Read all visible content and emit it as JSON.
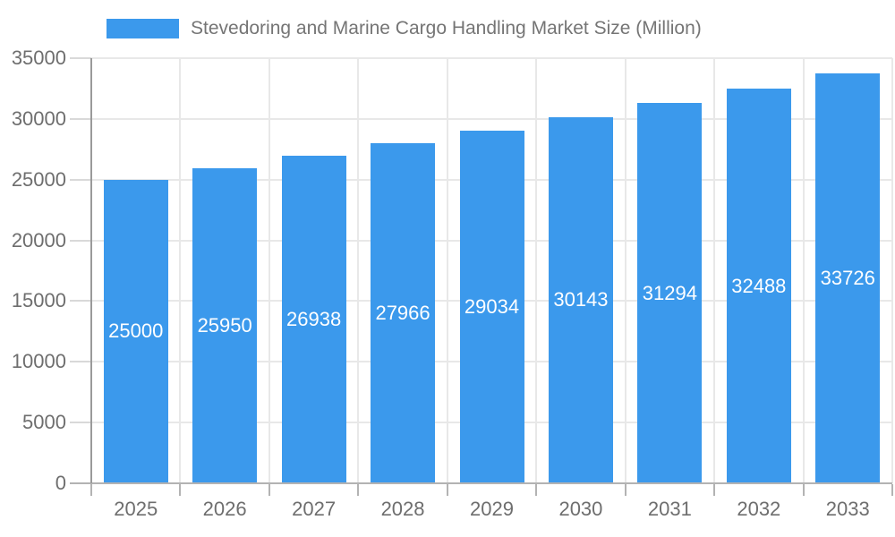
{
  "chart_data": {
    "type": "bar",
    "title": "Stevedoring and Marine Cargo Handling Market Size (Million)",
    "categories": [
      "2025",
      "2026",
      "2027",
      "2028",
      "2029",
      "2030",
      "2031",
      "2032",
      "2033"
    ],
    "values": [
      25000,
      25950,
      26938,
      27966,
      29034,
      30143,
      31294,
      32488,
      33726
    ],
    "xlabel": "",
    "ylabel": "",
    "ylim": [
      0,
      35000
    ],
    "ytick_step": 5000,
    "yticks": [
      0,
      5000,
      10000,
      15000,
      20000,
      25000,
      30000,
      35000
    ],
    "grid": true,
    "legend_position": "top",
    "bar_labels": "inside-center-white",
    "colors": {
      "bar": "#3B99EC",
      "bar_label": "#FFFFFF",
      "axis_text": "#6E6E6E",
      "title_text": "#757575",
      "gridline": "#E8E8E8",
      "tick": "#D9D9D9",
      "axis_line_x": "#B3B3B3",
      "axis_line_y": "#9A9A9A",
      "background": "#FFFFFF"
    }
  }
}
